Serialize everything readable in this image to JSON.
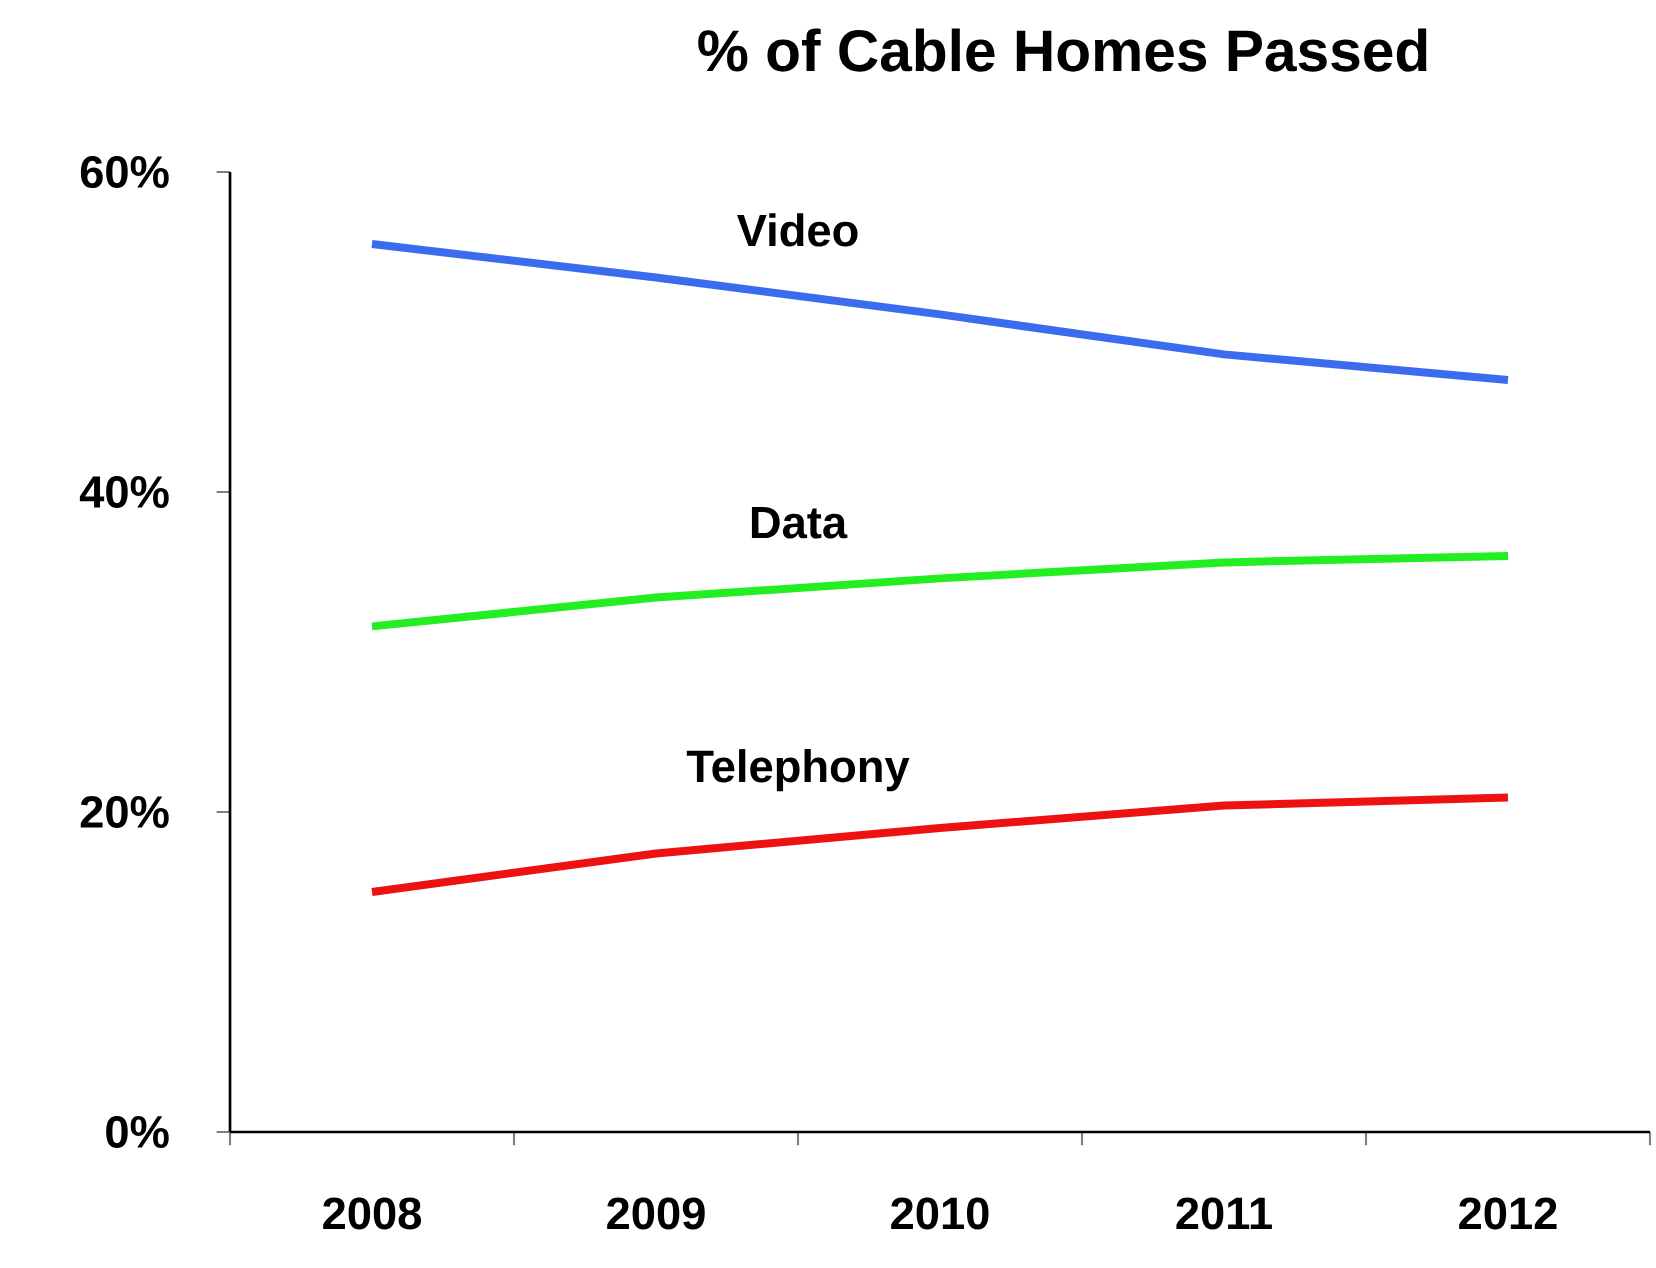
{
  "chart_data": {
    "type": "line",
    "title": "% of Cable Homes Passed",
    "categories": [
      "2008",
      "2009",
      "2010",
      "2011",
      "2012"
    ],
    "series": [
      {
        "name": "Video",
        "color": "#3b6cf0",
        "values": [
          55.5,
          53.4,
          51.1,
          48.6,
          47.0
        ]
      },
      {
        "name": "Data",
        "color": "#22ee22",
        "values": [
          31.6,
          33.4,
          34.6,
          35.6,
          36.0
        ]
      },
      {
        "name": "Telephony",
        "color": "#ee1111",
        "values": [
          15.0,
          17.4,
          19.0,
          20.4,
          20.9
        ]
      }
    ],
    "ylim": [
      0,
      60
    ],
    "yticks": [
      {
        "value": 0,
        "label": "0%"
      },
      {
        "value": 20,
        "label": "20%"
      },
      {
        "value": 40,
        "label": "40%"
      },
      {
        "value": 60,
        "label": "60%"
      }
    ],
    "legend": false,
    "grid": false,
    "marker": "none",
    "line_style": "solid"
  }
}
